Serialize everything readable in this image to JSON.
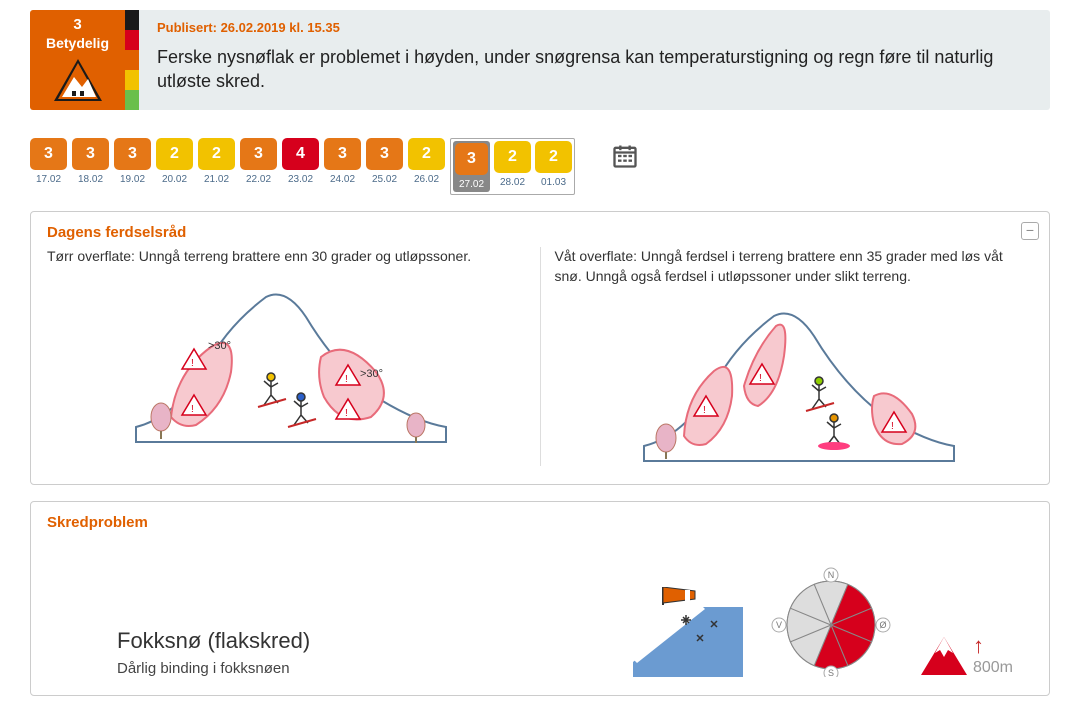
{
  "colors": {
    "orange": "#e06000",
    "orange_chip": "#e57717",
    "yellow_chip": "#f2c200",
    "red_chip": "#d6001c",
    "grey_sel": "#8a8a8a",
    "panel_bg": "#e8edee",
    "scale": [
      "#1a1a1a",
      "#d6001c",
      "#e06000",
      "#f2c200",
      "#6abf4b"
    ],
    "red_zone": "#e86b7a",
    "red_zone_fill": "#f7c9cf",
    "compass_red": "#d6001c",
    "compass_grey": "#dddddd"
  },
  "header": {
    "level": "3",
    "label": "Betydelig",
    "published": "Publisert: 26.02.2019 kl. 15.35",
    "text": "Ferske nysnøflak er problemet i høyden, under snøgrensa kan temperaturstigning og regn føre til naturlig utløste skred."
  },
  "days": [
    {
      "lvl": "3",
      "date": "17.02",
      "color": "orange_chip"
    },
    {
      "lvl": "3",
      "date": "18.02",
      "color": "orange_chip"
    },
    {
      "lvl": "3",
      "date": "19.02",
      "color": "orange_chip"
    },
    {
      "lvl": "2",
      "date": "20.02",
      "color": "yellow_chip"
    },
    {
      "lvl": "2",
      "date": "21.02",
      "color": "yellow_chip"
    },
    {
      "lvl": "3",
      "date": "22.02",
      "color": "orange_chip"
    },
    {
      "lvl": "4",
      "date": "23.02",
      "color": "red_chip"
    },
    {
      "lvl": "3",
      "date": "24.02",
      "color": "orange_chip"
    },
    {
      "lvl": "3",
      "date": "25.02",
      "color": "orange_chip"
    },
    {
      "lvl": "2",
      "date": "26.02",
      "color": "yellow_chip"
    },
    {
      "lvl": "3",
      "date": "27.02",
      "color": "orange_chip",
      "selected": true
    },
    {
      "lvl": "2",
      "date": "28.02",
      "color": "yellow_chip",
      "future": true
    },
    {
      "lvl": "2",
      "date": "01.03",
      "color": "yellow_chip",
      "future": true
    }
  ],
  "advice": {
    "title": "Dagens ferdselsråd",
    "dry": {
      "text": "Tørr overflate: Unngå terreng brattere enn 30 grader og utløpssoner.",
      "left_label": ">30°",
      "right_label": ">30°"
    },
    "wet": {
      "text": "Våt overflate: Unngå ferdsel i terreng brattere enn 35 grader med løs våt snø. Unngå også ferdsel i utløpssoner under slikt terreng."
    }
  },
  "problem": {
    "title": "Skredproblem",
    "name": "Fokksnø (flakskred)",
    "sub": "Dårlig binding i fokksnøen",
    "compass_labels": {
      "n": "N",
      "e": "Ø",
      "s": "S",
      "w": "V"
    },
    "elevation": "800m",
    "red_sectors": [
      "NE",
      "E",
      "SE",
      "S"
    ]
  }
}
